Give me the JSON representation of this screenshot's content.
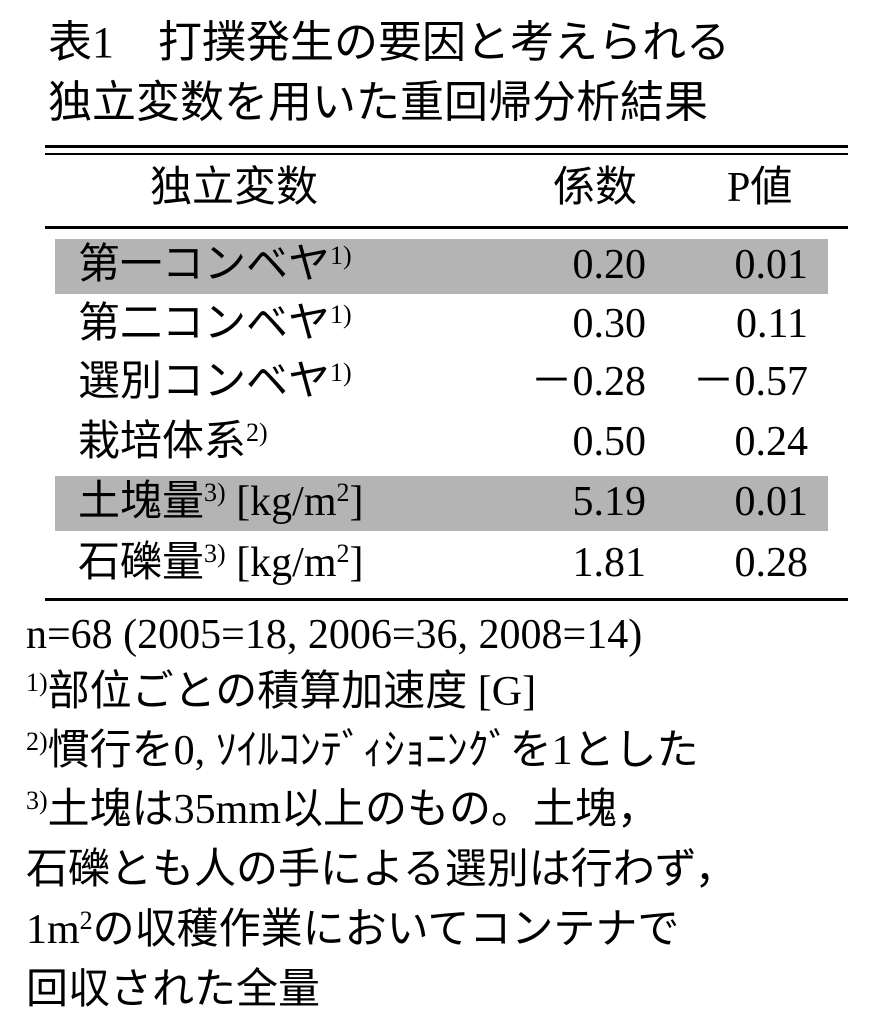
{
  "title": {
    "lines": [
      "表1　打撲発生の要因と考えられる",
      "独立変数を用いた重回帰分析結果"
    ]
  },
  "table": {
    "header": [
      "独立変数",
      "係数",
      "P値"
    ],
    "rows": [
      {
        "label": "第一コンベヤ",
        "note": "1)",
        "coef": "0.20",
        "p": "0.01",
        "highlight": true
      },
      {
        "label": "第二コンベヤ",
        "note": "1)",
        "coef": "0.30",
        "p": "0.11",
        "highlight": false
      },
      {
        "label": "選別コンベヤ",
        "note": "1)",
        "coef": "－0.28",
        "p": "－0.57",
        "highlight": false
      },
      {
        "label": "栽培体系",
        "note": "2)",
        "coef": "0.50",
        "p": "0.24",
        "highlight": false
      },
      {
        "label": "土塊量",
        "note": "3)",
        "unit": " [kg/m",
        "unit_sup": "2",
        "unit_end": "]",
        "coef": "5.19",
        "p": "0.01",
        "highlight": true
      },
      {
        "label": "石礫量",
        "note": "3)",
        "unit": " [kg/m",
        "unit_sup": "2",
        "unit_end": "]",
        "coef": "1.81",
        "p": "0.28",
        "highlight": false
      }
    ]
  },
  "notes": {
    "n": "n=68 (2005=18,  2006=36,  2008=14)",
    "note1": {
      "mark": "1)",
      "text": "部位ごとの積算加速度 [G]"
    },
    "note2": {
      "mark": "2)",
      "text": "慣行を0, ｿｲﾙｺﾝﾃﾞｨｼｮﾆﾝｸﾞを1とした"
    },
    "note3": {
      "mark": "3)",
      "lines": [
        "土塊は35mm以上のもの。土塊，",
        "石礫とも人の手による選別は行わず，"
      ],
      "line3_pre": "1m",
      "line3_sup": "2",
      "line3_post": "の収穫作業においてコンテナで",
      "line4": "回収された全量"
    }
  }
}
